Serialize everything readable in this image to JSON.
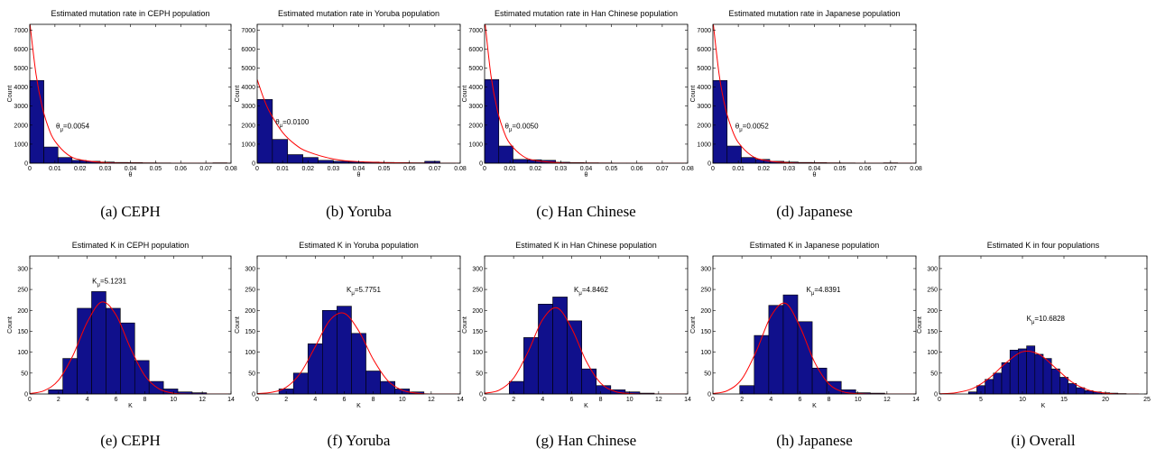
{
  "chart_data": [
    {
      "type": "histogram",
      "title": "Estimated mutation rate in CEPH population",
      "caption": "(a) CEPH",
      "xlabel": "θ",
      "ylabel": "Count",
      "bins": [
        0,
        0.0056,
        0.0112,
        0.0168,
        0.0224,
        0.028,
        0.0336,
        0.0392,
        0.0448,
        0.0504,
        0.056,
        0.0616,
        0.0672,
        0.0728,
        0.0784
      ],
      "counts": [
        4350,
        850,
        300,
        150,
        100,
        60,
        40,
        30,
        20,
        15,
        10,
        10,
        10,
        20
      ],
      "color": "#10108c",
      "fit": {
        "x": [
          0,
          0.0025,
          0.005,
          0.0075,
          0.01,
          0.015,
          0.02,
          0.03,
          0.04,
          0.06,
          0.08
        ],
        "y": [
          7400,
          4660,
          2930,
          1840,
          1160,
          460,
          182,
          29,
          5,
          0,
          0
        ],
        "color": "#ff0000"
      },
      "annotation": {
        "symbol": "θ",
        "subscript": "μ",
        "text": "=0.0054"
      },
      "xlim": [
        0,
        0.08
      ],
      "xticks": [
        0,
        0.01,
        0.02,
        0.03,
        0.04,
        0.05,
        0.06,
        0.07,
        0.08
      ],
      "ylim": [
        0,
        7300
      ],
      "yticks": [
        0,
        1000,
        2000,
        3000,
        4000,
        5000,
        6000,
        7000
      ]
    },
    {
      "type": "histogram",
      "title": "Estimated mutation rate in Yoruba population",
      "caption": "(b) Yoruba",
      "xlabel": "θ",
      "ylabel": "Count",
      "bins": [
        0,
        0.006,
        0.012,
        0.018,
        0.024,
        0.03,
        0.036,
        0.042,
        0.048,
        0.054,
        0.06,
        0.066,
        0.072,
        0.078
      ],
      "counts": [
        3350,
        1250,
        450,
        300,
        150,
        100,
        80,
        60,
        40,
        30,
        20,
        100,
        10
      ],
      "color": "#10108c",
      "fit": {
        "x": [
          0,
          0.0025,
          0.005,
          0.01,
          0.015,
          0.02,
          0.03,
          0.04,
          0.06,
          0.08
        ],
        "y": [
          4400,
          3430,
          2670,
          1620,
          980,
          600,
          220,
          80,
          11,
          1
        ],
        "color": "#ff0000"
      },
      "annotation": {
        "symbol": "θ",
        "subscript": "μ",
        "text": "=0.0100"
      },
      "xlim": [
        0,
        0.08
      ],
      "xticks": [
        0,
        0.01,
        0.02,
        0.03,
        0.04,
        0.05,
        0.06,
        0.07,
        0.08
      ],
      "ylim": [
        0,
        7300
      ],
      "yticks": [
        0,
        1000,
        2000,
        3000,
        4000,
        5000,
        6000,
        7000
      ]
    },
    {
      "type": "histogram",
      "title": "Estimated mutation rate in Han Chinese population",
      "caption": "(c) Han Chinese",
      "xlabel": "θ",
      "ylabel": "Count",
      "bins": [
        0,
        0.0056,
        0.0112,
        0.0168,
        0.0224,
        0.028,
        0.0336,
        0.0392,
        0.0448,
        0.0504,
        0.056,
        0.0616,
        0.0672,
        0.0728,
        0.0784
      ],
      "counts": [
        4400,
        900,
        200,
        180,
        150,
        50,
        30,
        20,
        15,
        10,
        10,
        5,
        5,
        5
      ],
      "color": "#10108c",
      "fit": {
        "x": [
          0,
          0.0025,
          0.005,
          0.0075,
          0.01,
          0.015,
          0.02,
          0.03,
          0.04,
          0.06,
          0.08
        ],
        "y": [
          7600,
          4610,
          2800,
          1700,
          1030,
          380,
          140,
          19,
          3,
          0,
          0
        ],
        "color": "#ff0000"
      },
      "annotation": {
        "symbol": "θ",
        "subscript": "μ",
        "text": "=0.0050"
      },
      "xlim": [
        0,
        0.08
      ],
      "xticks": [
        0,
        0.01,
        0.02,
        0.03,
        0.04,
        0.05,
        0.06,
        0.07,
        0.08
      ],
      "ylim": [
        0,
        7300
      ],
      "yticks": [
        0,
        1000,
        2000,
        3000,
        4000,
        5000,
        6000,
        7000
      ]
    },
    {
      "type": "histogram",
      "title": "Estimated mutation rate in Japanese population",
      "caption": "(d) Japanese",
      "xlabel": "θ",
      "ylabel": "Count",
      "bins": [
        0,
        0.0056,
        0.0112,
        0.0168,
        0.0224,
        0.028,
        0.0336,
        0.0392,
        0.0448,
        0.0504,
        0.056,
        0.0616,
        0.0672,
        0.0728,
        0.0784
      ],
      "counts": [
        4350,
        900,
        300,
        200,
        100,
        60,
        40,
        30,
        20,
        15,
        10,
        10,
        20,
        10
      ],
      "color": "#10108c",
      "fit": {
        "x": [
          0,
          0.0025,
          0.005,
          0.0075,
          0.01,
          0.015,
          0.02,
          0.03,
          0.04,
          0.06,
          0.08
        ],
        "y": [
          7500,
          4620,
          2850,
          1780,
          1090,
          415,
          160,
          23,
          3,
          0,
          0
        ],
        "color": "#ff0000"
      },
      "annotation": {
        "symbol": "θ",
        "subscript": "μ",
        "text": "=0.0052"
      },
      "xlim": [
        0,
        0.08
      ],
      "xticks": [
        0,
        0.01,
        0.02,
        0.03,
        0.04,
        0.05,
        0.06,
        0.07,
        0.08
      ],
      "ylim": [
        0,
        7300
      ],
      "yticks": [
        0,
        1000,
        2000,
        3000,
        4000,
        5000,
        6000,
        7000
      ]
    },
    {
      "type": "histogram",
      "title": "Estimated K in CEPH population",
      "caption": "(e) CEPH",
      "xlabel": "K",
      "ylabel": "Count",
      "bins": [
        1.3,
        2.3,
        3.3,
        4.3,
        5.3,
        6.3,
        7.3,
        8.3,
        9.3,
        10.3,
        11.3,
        12.3
      ],
      "counts": [
        10,
        85,
        205,
        245,
        205,
        170,
        80,
        30,
        12,
        5,
        3
      ],
      "color": "#10108c",
      "fit": {
        "x": [
          0,
          1,
          2,
          3,
          4,
          5,
          6,
          7,
          8,
          9,
          10,
          11,
          12,
          13,
          14
        ],
        "y": [
          1,
          8,
          33,
          92,
          172,
          220,
          189,
          110,
          44,
          12,
          2,
          0,
          0,
          0,
          0
        ],
        "color": "#ff0000"
      },
      "annotation": {
        "symbol": "K",
        "subscript": "μ",
        "text": "=5.1231"
      },
      "xlim": [
        0,
        14
      ],
      "xticks": [
        0,
        2,
        4,
        6,
        8,
        10,
        12,
        14
      ],
      "ylim": [
        0,
        330
      ],
      "yticks": [
        0,
        50,
        100,
        150,
        200,
        250,
        300
      ]
    },
    {
      "type": "histogram",
      "title": "Estimated K in Yoruba population",
      "caption": "(f) Yoruba",
      "xlabel": "K",
      "ylabel": "Count",
      "bins": [
        1.5,
        2.5,
        3.5,
        4.5,
        5.5,
        6.5,
        7.5,
        8.5,
        9.5,
        10.5,
        11.5
      ],
      "counts": [
        12,
        50,
        120,
        200,
        210,
        145,
        55,
        30,
        12,
        5
      ],
      "color": "#10108c",
      "fit": {
        "x": [
          0,
          1,
          2,
          3,
          4,
          5,
          6,
          7,
          8,
          9,
          10,
          11,
          12,
          13,
          14
        ],
        "y": [
          1,
          4,
          16,
          51,
          113,
          176,
          193,
          151,
          83,
          32,
          9,
          2,
          0,
          0,
          0
        ],
        "color": "#ff0000"
      },
      "annotation": {
        "symbol": "K",
        "subscript": "μ",
        "text": "=5.7751"
      },
      "xlim": [
        0,
        14
      ],
      "xticks": [
        0,
        2,
        4,
        6,
        8,
        10,
        12,
        14
      ],
      "ylim": [
        0,
        330
      ],
      "yticks": [
        0,
        50,
        100,
        150,
        200,
        250,
        300
      ]
    },
    {
      "type": "histogram",
      "title": "Estimated K in Han Chinese population",
      "caption": "(g) Han Chinese",
      "xlabel": "K",
      "ylabel": "Count",
      "bins": [
        1.7,
        2.7,
        3.7,
        4.7,
        5.7,
        6.7,
        7.7,
        8.7,
        9.7,
        10.7,
        11.7
      ],
      "counts": [
        30,
        135,
        215,
        232,
        175,
        60,
        20,
        10,
        5,
        2
      ],
      "color": "#10108c",
      "fit": {
        "x": [
          0,
          1,
          2,
          3,
          4,
          5,
          6,
          7,
          8,
          9,
          10,
          11,
          12,
          13,
          14
        ],
        "y": [
          2,
          9,
          38,
          101,
          178,
          206,
          157,
          79,
          26,
          6,
          1,
          0,
          0,
          0,
          0
        ],
        "color": "#ff0000"
      },
      "annotation": {
        "symbol": "K",
        "subscript": "μ",
        "text": "=4.8462"
      },
      "xlim": [
        0,
        14
      ],
      "xticks": [
        0,
        2,
        4,
        6,
        8,
        10,
        12,
        14
      ],
      "ylim": [
        0,
        330
      ],
      "yticks": [
        0,
        50,
        100,
        150,
        200,
        250,
        300
      ]
    },
    {
      "type": "histogram",
      "title": "Estimated K in Japanese population",
      "caption": "(h) Japanese",
      "xlabel": "K",
      "ylabel": "Count",
      "bins": [
        1.85,
        2.85,
        3.85,
        4.85,
        5.85,
        6.85,
        7.85,
        8.85,
        9.85,
        10.85,
        11.85
      ],
      "counts": [
        20,
        140,
        212,
        237,
        173,
        62,
        30,
        10,
        3,
        2
      ],
      "color": "#10108c",
      "fit": {
        "x": [
          0,
          1,
          2,
          3,
          4,
          5,
          6,
          7,
          8,
          9,
          10,
          11,
          12,
          13,
          14
        ],
        "y": [
          1,
          8,
          36,
          103,
          186,
          217,
          161,
          77,
          24,
          5,
          1,
          0,
          0,
          0,
          0
        ],
        "color": "#ff0000"
      },
      "annotation": {
        "symbol": "K",
        "subscript": "μ",
        "text": "=4.8391"
      },
      "xlim": [
        0,
        14
      ],
      "xticks": [
        0,
        2,
        4,
        6,
        8,
        10,
        12,
        14
      ],
      "ylim": [
        0,
        330
      ],
      "yticks": [
        0,
        50,
        100,
        150,
        200,
        250,
        300
      ]
    },
    {
      "type": "histogram",
      "title": "Estimated K in four populations",
      "caption": "(i) Overall",
      "xlabel": "K",
      "ylabel": "Count",
      "bins": [
        3.5,
        4.5,
        5.5,
        6.5,
        7.5,
        8.5,
        9.5,
        10.5,
        11.5,
        12.5,
        13.5,
        14.5,
        15.5,
        16.5,
        17.5,
        18.5,
        19.5,
        20.5,
        21.5,
        22.5
      ],
      "counts": [
        5,
        20,
        35,
        50,
        75,
        105,
        108,
        115,
        95,
        85,
        60,
        40,
        25,
        15,
        8,
        5,
        3,
        2,
        1
      ],
      "color": "#10108c",
      "fit": {
        "x": [
          0,
          2,
          4,
          6,
          8,
          10,
          12,
          14,
          16,
          18,
          20,
          22,
          24
        ],
        "y": [
          0.5,
          3,
          13,
          38,
          74,
          101,
          95,
          62,
          28,
          9,
          2,
          0,
          0
        ],
        "color": "#ff0000"
      },
      "annotation": {
        "symbol": "K",
        "subscript": "μ",
        "text": "=10.6828"
      },
      "xlim": [
        0,
        25
      ],
      "xticks": [
        0,
        5,
        10,
        15,
        20,
        25
      ],
      "ylim": [
        0,
        330
      ],
      "yticks": [
        0,
        50,
        100,
        150,
        200,
        250,
        300
      ]
    }
  ]
}
